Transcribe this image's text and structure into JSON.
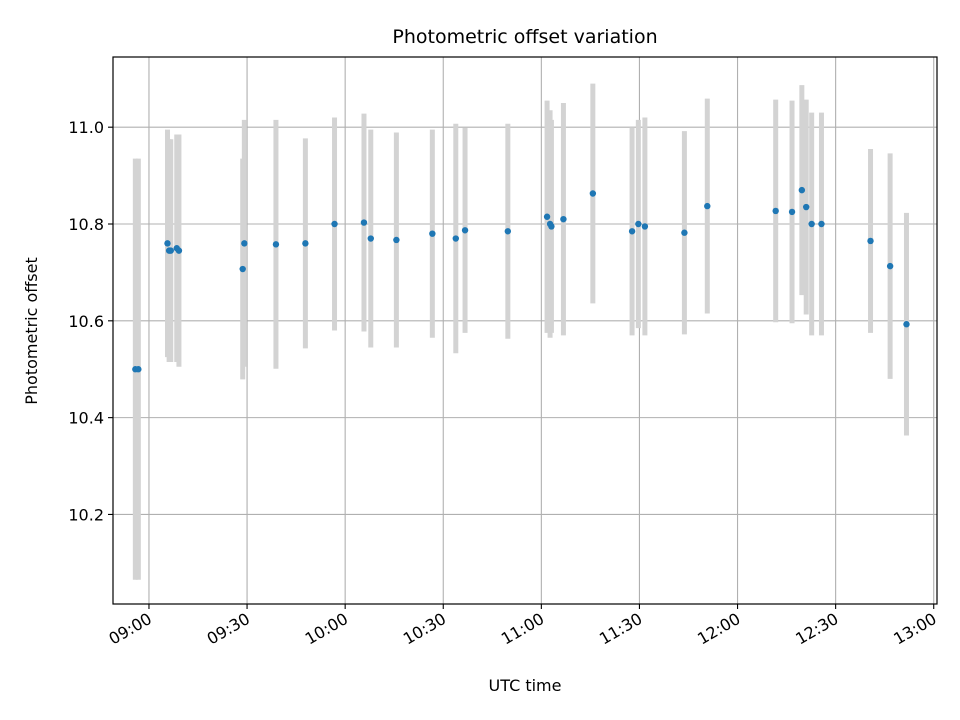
{
  "chart_data": {
    "type": "scatter",
    "title": "Photometric offset variation",
    "xlabel": "UTC time",
    "ylabel": "Photometric offset",
    "xlim": [
      "08:49",
      "13:01"
    ],
    "ylim": [
      10.015,
      11.145
    ],
    "grid": true,
    "x_ticks": [
      "09:00",
      "09:30",
      "10:00",
      "10:30",
      "11:00",
      "11:30",
      "12:00",
      "12:30",
      "13:00"
    ],
    "y_ticks": [
      "10.2",
      "10.4",
      "10.6",
      "10.8",
      "11.0"
    ],
    "colors": {
      "point": "#1f77b4",
      "errorbar": "#d3d3d3",
      "grid": "#b0b0b0"
    },
    "series": [
      {
        "points": [
          {
            "x": "08:55:50",
            "y": 10.5,
            "err": 0.435
          },
          {
            "x": "08:56:45",
            "y": 10.5,
            "err": 0.435
          },
          {
            "x": "09:05:40",
            "y": 10.76,
            "err": 0.235
          },
          {
            "x": "09:06:10",
            "y": 10.745,
            "err": 0.23
          },
          {
            "x": "09:06:40",
            "y": 10.745,
            "err": 0.23
          },
          {
            "x": "09:08:30",
            "y": 10.75,
            "err": 0.235
          },
          {
            "x": "09:09:10",
            "y": 10.745,
            "err": 0.24
          },
          {
            "x": "09:28:40",
            "y": 10.707,
            "err": 0.228
          },
          {
            "x": "09:29:10",
            "y": 10.76,
            "err": 0.255
          },
          {
            "x": "09:38:50",
            "y": 10.758,
            "err": 0.257
          },
          {
            "x": "09:47:50",
            "y": 10.76,
            "err": 0.217
          },
          {
            "x": "09:56:45",
            "y": 10.8,
            "err": 0.22
          },
          {
            "x": "10:05:45",
            "y": 10.803,
            "err": 0.225
          },
          {
            "x": "10:07:50",
            "y": 10.77,
            "err": 0.225
          },
          {
            "x": "10:15:40",
            "y": 10.767,
            "err": 0.222
          },
          {
            "x": "10:26:40",
            "y": 10.78,
            "err": 0.215
          },
          {
            "x": "10:33:50",
            "y": 10.77,
            "err": 0.237
          },
          {
            "x": "10:36:40",
            "y": 10.787,
            "err": 0.212
          },
          {
            "x": "10:49:45",
            "y": 10.785,
            "err": 0.222
          },
          {
            "x": "11:01:45",
            "y": 10.815,
            "err": 0.24
          },
          {
            "x": "11:02:40",
            "y": 10.8,
            "err": 0.235
          },
          {
            "x": "11:03:05",
            "y": 10.795,
            "err": 0.22
          },
          {
            "x": "11:06:45",
            "y": 10.81,
            "err": 0.24
          },
          {
            "x": "11:15:45",
            "y": 10.863,
            "err": 0.227
          },
          {
            "x": "11:27:45",
            "y": 10.785,
            "err": 0.215
          },
          {
            "x": "11:29:40",
            "y": 10.8,
            "err": 0.215
          },
          {
            "x": "11:31:40",
            "y": 10.795,
            "err": 0.225
          },
          {
            "x": "11:43:45",
            "y": 10.782,
            "err": 0.21
          },
          {
            "x": "11:50:45",
            "y": 10.837,
            "err": 0.222
          },
          {
            "x": "12:11:40",
            "y": 10.827,
            "err": 0.23
          },
          {
            "x": "12:16:40",
            "y": 10.825,
            "err": 0.23
          },
          {
            "x": "12:19:40",
            "y": 10.87,
            "err": 0.217
          },
          {
            "x": "12:21:00",
            "y": 10.835,
            "err": 0.222
          },
          {
            "x": "12:22:40",
            "y": 10.8,
            "err": 0.23
          },
          {
            "x": "12:25:40",
            "y": 10.8,
            "err": 0.23
          },
          {
            "x": "12:40:40",
            "y": 10.765,
            "err": 0.19
          },
          {
            "x": "12:46:40",
            "y": 10.713,
            "err": 0.233
          },
          {
            "x": "12:51:40",
            "y": 10.593,
            "err": 0.23
          }
        ]
      }
    ]
  }
}
